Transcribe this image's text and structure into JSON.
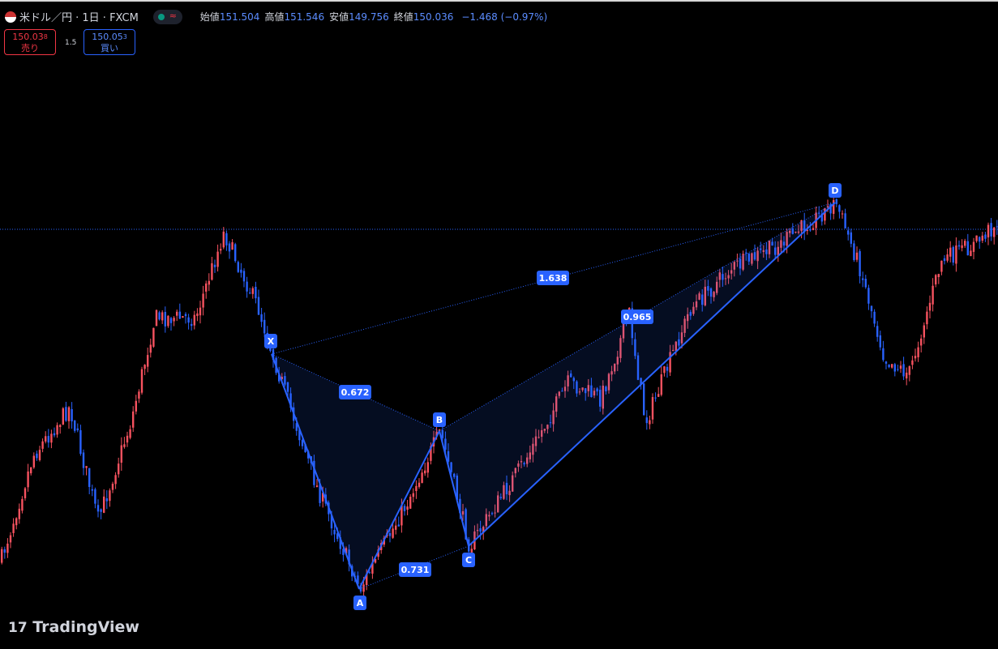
{
  "header": {
    "symbol": "米ドル／円 · 1日 · FXCM",
    "ohlc": [
      {
        "label": "始値",
        "value": "151.504"
      },
      {
        "label": "高値",
        "value": "151.546"
      },
      {
        "label": "安値",
        "value": "149.756"
      },
      {
        "label": "終値",
        "value": "150.036"
      }
    ],
    "change": "−1.468 (−0.97%)"
  },
  "trade": {
    "sell": {
      "price": "150.03",
      "sup": "8",
      "label": "売り"
    },
    "spread": "1.5",
    "buy": {
      "price": "150.05",
      "sup": "3",
      "label": "買い"
    }
  },
  "pattern": {
    "points": [
      "X",
      "A",
      "B",
      "C",
      "D"
    ],
    "ratios": {
      "xb": "0.672",
      "ac": "0.731",
      "bd": "0.965",
      "xd": "1.638"
    }
  },
  "logo": "TradingView"
}
